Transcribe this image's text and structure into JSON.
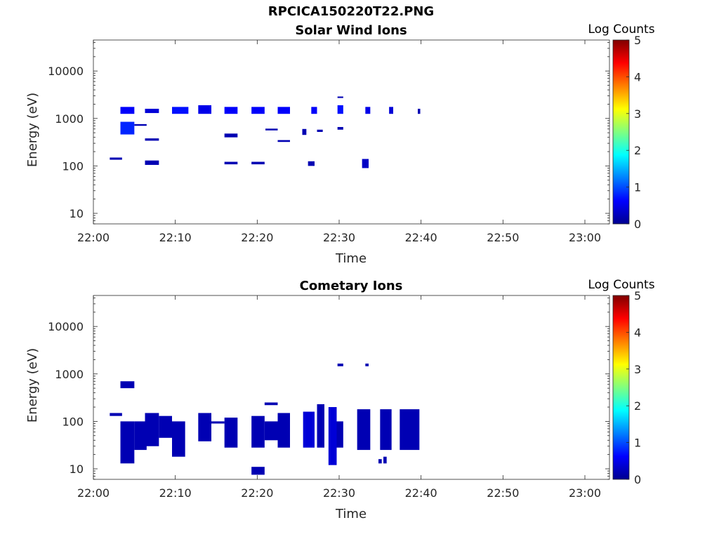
{
  "figure": {
    "title": "RPCICA150220T22.PNG"
  },
  "chart_data": [
    {
      "type": "heatmap",
      "title": "Solar Wind Ions",
      "xlabel": "Time",
      "ylabel": "Energy (eV)",
      "yscale": "log",
      "ylim": [
        6,
        45000
      ],
      "xlim": [
        "22:00",
        "23:03"
      ],
      "x_ticks": [
        "22:00",
        "22:10",
        "22:20",
        "22:30",
        "22:40",
        "22:50",
        "23:00"
      ],
      "y_ticks": [
        "10",
        "100",
        "1000",
        "10000"
      ],
      "colorbar": {
        "label": "Log Counts",
        "range": [
          0,
          5
        ],
        "ticks": [
          "0",
          "1",
          "2",
          "3",
          "4",
          "5"
        ],
        "colormap": "jet"
      },
      "grid": false,
      "cells": [
        {
          "t": "22:02",
          "t_end": "22:03.5",
          "e_lo": 135,
          "e_hi": 150,
          "v": 0.2
        },
        {
          "t": "22:03.3",
          "t_end": "22:05",
          "e_lo": 1250,
          "e_hi": 1750,
          "v": 0.6
        },
        {
          "t": "22:03.3",
          "t_end": "22:05",
          "e_lo": 460,
          "e_hi": 850,
          "v": 0.8
        },
        {
          "t": "22:05",
          "t_end": "22:06.5",
          "e_lo": 700,
          "e_hi": 760,
          "v": 0.2
        },
        {
          "t": "22:06.3",
          "t_end": "22:08",
          "e_lo": 1300,
          "e_hi": 1600,
          "v": 0.4
        },
        {
          "t": "22:06.3",
          "t_end": "22:08",
          "e_lo": 340,
          "e_hi": 380,
          "v": 0.2
        },
        {
          "t": "22:06.3",
          "t_end": "22:08",
          "e_lo": 105,
          "e_hi": 130,
          "v": 0.2
        },
        {
          "t": "22:09.6",
          "t_end": "22:11.6",
          "e_lo": 1250,
          "e_hi": 1750,
          "v": 0.7
        },
        {
          "t": "22:12.8",
          "t_end": "22:14.4",
          "e_lo": 1250,
          "e_hi": 1900,
          "v": 0.5
        },
        {
          "t": "22:16",
          "t_end": "22:17.6",
          "e_lo": 1250,
          "e_hi": 1750,
          "v": 0.6
        },
        {
          "t": "22:16",
          "t_end": "22:17.6",
          "e_lo": 400,
          "e_hi": 480,
          "v": 0.2
        },
        {
          "t": "22:16",
          "t_end": "22:17.6",
          "e_lo": 108,
          "e_hi": 122,
          "v": 0.2
        },
        {
          "t": "22:19.3",
          "t_end": "22:20.9",
          "e_lo": 1250,
          "e_hi": 1750,
          "v": 0.6
        },
        {
          "t": "22:19.3",
          "t_end": "22:20.9",
          "e_lo": 108,
          "e_hi": 122,
          "v": 0.2
        },
        {
          "t": "22:21",
          "t_end": "22:22.5",
          "e_lo": 560,
          "e_hi": 610,
          "v": 0.2
        },
        {
          "t": "22:22.5",
          "t_end": "22:24",
          "e_lo": 1250,
          "e_hi": 1750,
          "v": 0.6
        },
        {
          "t": "22:22.5",
          "t_end": "22:24",
          "e_lo": 320,
          "e_hi": 350,
          "v": 0.2
        },
        {
          "t": "22:25.5",
          "t_end": "22:26",
          "e_lo": 450,
          "e_hi": 600,
          "v": 0.2
        },
        {
          "t": "22:26.6",
          "t_end": "22:27.3",
          "e_lo": 1250,
          "e_hi": 1750,
          "v": 0.6
        },
        {
          "t": "22:26.2",
          "t_end": "22:27",
          "e_lo": 100,
          "e_hi": 125,
          "v": 0.2
        },
        {
          "t": "22:27.3",
          "t_end": "22:28",
          "e_lo": 520,
          "e_hi": 580,
          "v": 0.2
        },
        {
          "t": "22:29.8",
          "t_end": "22:30.5",
          "e_lo": 1250,
          "e_hi": 1900,
          "v": 0.7
        },
        {
          "t": "22:29.8",
          "t_end": "22:30.5",
          "e_lo": 2700,
          "e_hi": 2900,
          "v": 0.2
        },
        {
          "t": "22:29.8",
          "t_end": "22:30.5",
          "e_lo": 580,
          "e_hi": 660,
          "v": 0.2
        },
        {
          "t": "22:32.8",
          "t_end": "22:33.6",
          "e_lo": 90,
          "e_hi": 140,
          "v": 0.3
        },
        {
          "t": "22:33.2",
          "t_end": "22:33.8",
          "e_lo": 1250,
          "e_hi": 1750,
          "v": 0.5
        },
        {
          "t": "22:36.1",
          "t_end": "22:36.6",
          "e_lo": 1250,
          "e_hi": 1750,
          "v": 0.4
        },
        {
          "t": "22:39.6",
          "t_end": "22:39.9",
          "e_lo": 1250,
          "e_hi": 1600,
          "v": 0.2
        }
      ]
    },
    {
      "type": "heatmap",
      "title": "Cometary Ions",
      "xlabel": "Time",
      "ylabel": "Energy (eV)",
      "yscale": "log",
      "ylim": [
        6,
        45000
      ],
      "xlim": [
        "22:00",
        "23:03"
      ],
      "x_ticks": [
        "22:00",
        "22:10",
        "22:20",
        "22:30",
        "22:40",
        "22:50",
        "23:00"
      ],
      "y_ticks": [
        "10",
        "100",
        "1000",
        "10000"
      ],
      "colorbar": {
        "label": "Log Counts",
        "range": [
          0,
          5
        ],
        "ticks": [
          "0",
          "1",
          "2",
          "3",
          "4",
          "5"
        ],
        "colormap": "jet"
      },
      "grid": false,
      "cells": [
        {
          "t": "22:02",
          "t_end": "22:03.5",
          "e_lo": 130,
          "e_hi": 150,
          "v": 0.2
        },
        {
          "t": "22:03.3",
          "t_end": "22:05",
          "e_lo": 500,
          "e_hi": 700,
          "v": 0.2
        },
        {
          "t": "22:03.3",
          "t_end": "22:05",
          "e_lo": 13,
          "e_hi": 100,
          "v": 0.2
        },
        {
          "t": "22:05",
          "t_end": "22:06.5",
          "e_lo": 25,
          "e_hi": 100,
          "v": 0.2
        },
        {
          "t": "22:06.3",
          "t_end": "22:08",
          "e_lo": 30,
          "e_hi": 150,
          "v": 0.2
        },
        {
          "t": "22:08",
          "t_end": "22:09.6",
          "e_lo": 45,
          "e_hi": 130,
          "v": 0.2
        },
        {
          "t": "22:09.6",
          "t_end": "22:11.2",
          "e_lo": 18,
          "e_hi": 100,
          "v": 0.2
        },
        {
          "t": "22:12.8",
          "t_end": "22:14.4",
          "e_lo": 38,
          "e_hi": 150,
          "v": 0.2
        },
        {
          "t": "22:14.4",
          "t_end": "22:16",
          "e_lo": 90,
          "e_hi": 100,
          "v": 0.2
        },
        {
          "t": "22:16",
          "t_end": "22:17.6",
          "e_lo": 28,
          "e_hi": 120,
          "v": 0.2
        },
        {
          "t": "22:19.3",
          "t_end": "22:20.9",
          "e_lo": 28,
          "e_hi": 130,
          "v": 0.2
        },
        {
          "t": "22:19.3",
          "t_end": "22:20.9",
          "e_lo": 7.5,
          "e_hi": 11,
          "v": 0.2
        },
        {
          "t": "22:20.9",
          "t_end": "22:22.5",
          "e_lo": 40,
          "e_hi": 100,
          "v": 0.2
        },
        {
          "t": "22:20.9",
          "t_end": "22:22.5",
          "e_lo": 220,
          "e_hi": 250,
          "v": 0.2
        },
        {
          "t": "22:22.5",
          "t_end": "22:24",
          "e_lo": 28,
          "e_hi": 150,
          "v": 0.2
        },
        {
          "t": "22:25.6",
          "t_end": "22:27",
          "e_lo": 28,
          "e_hi": 160,
          "v": 0.4
        },
        {
          "t": "22:27.3",
          "t_end": "22:28.2",
          "e_lo": 28,
          "e_hi": 230,
          "v": 0.2
        },
        {
          "t": "22:28.7",
          "t_end": "22:29.7",
          "e_lo": 12,
          "e_hi": 200,
          "v": 0.4
        },
        {
          "t": "22:29.7",
          "t_end": "22:30.5",
          "e_lo": 28,
          "e_hi": 100,
          "v": 0.2
        },
        {
          "t": "22:29.8",
          "t_end": "22:30.5",
          "e_lo": 1450,
          "e_hi": 1650,
          "v": 0.2
        },
        {
          "t": "22:33.2",
          "t_end": "22:33.6",
          "e_lo": 1450,
          "e_hi": 1650,
          "v": 0.2
        },
        {
          "t": "22:32.2",
          "t_end": "22:33.8",
          "e_lo": 25,
          "e_hi": 180,
          "v": 0.2
        },
        {
          "t": "22:35.0",
          "t_end": "22:36.4",
          "e_lo": 25,
          "e_hi": 180,
          "v": 0.2
        },
        {
          "t": "22:37.4",
          "t_end": "22:39.8",
          "e_lo": 25,
          "e_hi": 180,
          "v": 0.2
        },
        {
          "t": "22:34.8",
          "t_end": "22:35.2",
          "e_lo": 13,
          "e_hi": 16,
          "v": 0.2
        },
        {
          "t": "22:35.4",
          "t_end": "22:35.8",
          "e_lo": 13,
          "e_hi": 18,
          "v": 0.2
        }
      ]
    }
  ]
}
